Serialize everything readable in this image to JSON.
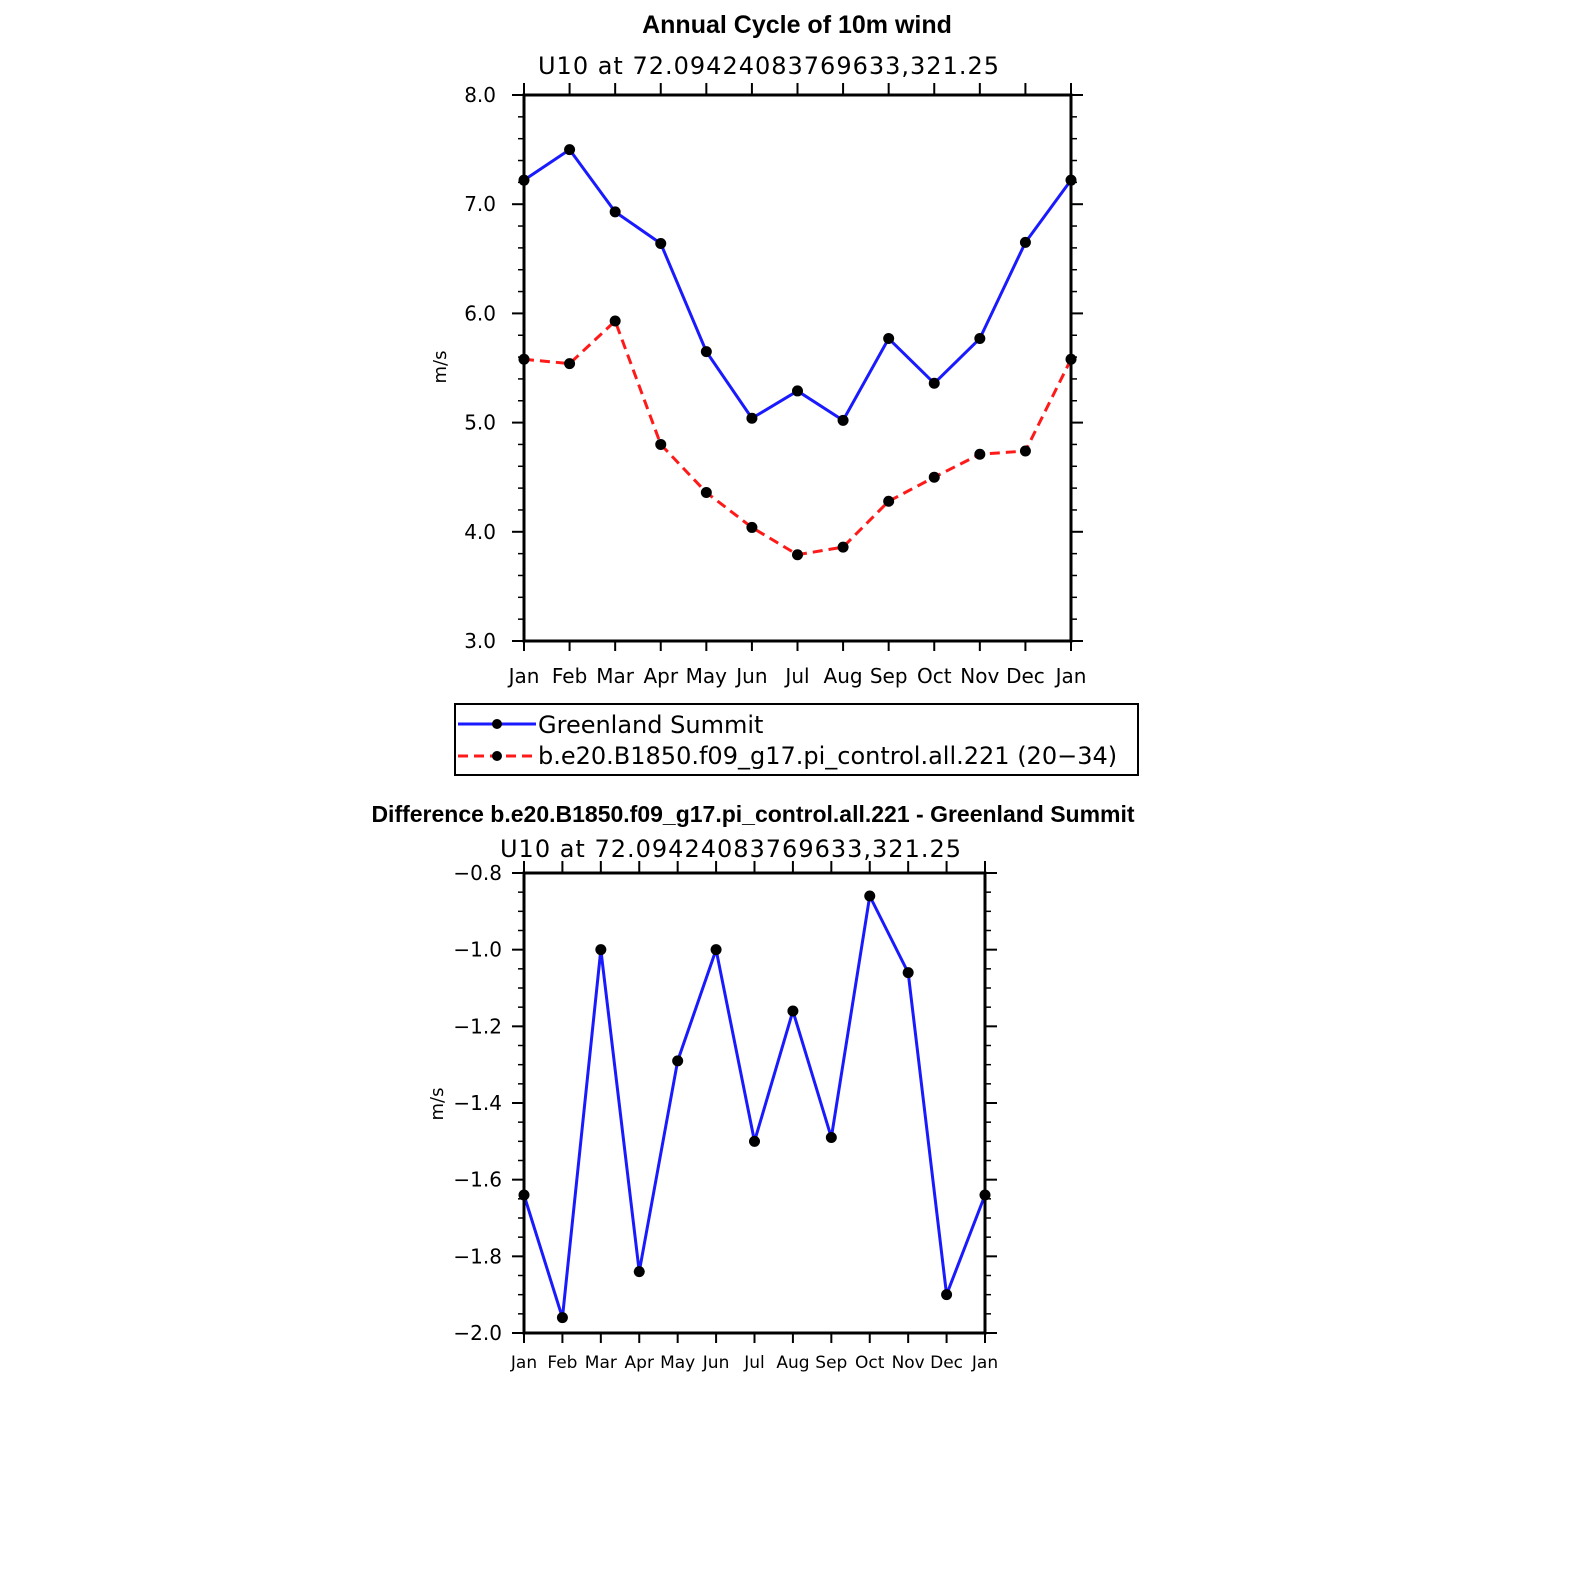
{
  "chart_data": [
    {
      "type": "line",
      "title": "Annual Cycle of 10m wind",
      "subtitle": "U10  at  72.09424083769633,321.25",
      "xlabel": "",
      "ylabel": "m/s",
      "ylim": [
        3.0,
        8.0
      ],
      "yticks": [
        "3.0",
        "4.0",
        "5.0",
        "6.0",
        "7.0",
        "8.0"
      ],
      "categories": [
        "Jan",
        "Feb",
        "Mar",
        "Apr",
        "May",
        "Jun",
        "Jul",
        "Aug",
        "Sep",
        "Oct",
        "Nov",
        "Dec",
        "Jan"
      ],
      "series": [
        {
          "name": "Greenland Summit",
          "color": "#1a1aff",
          "dash": "solid",
          "values": [
            7.22,
            7.5,
            6.93,
            6.64,
            5.65,
            5.04,
            5.29,
            5.02,
            5.77,
            5.36,
            5.77,
            6.65,
            7.22
          ]
        },
        {
          "name": "b.e20.B1850.f09_g17.pi_control.all.221 (20−34)",
          "color": "#ff1a1a",
          "dash": "dashed",
          "values": [
            5.58,
            5.54,
            5.93,
            4.8,
            4.36,
            4.04,
            3.79,
            3.86,
            4.28,
            4.5,
            4.71,
            4.74,
            5.58
          ]
        }
      ],
      "legend_position": "bottom"
    },
    {
      "type": "line",
      "title": "Difference b.e20.B1850.f09_g17.pi_control.all.221 - Greenland Summit",
      "subtitle": "U10  at  72.09424083769633,321.25",
      "xlabel": "",
      "ylabel": "m/s",
      "ylim": [
        -2.0,
        -0.8
      ],
      "yticks": [
        "−2.0",
        "−1.8",
        "−1.6",
        "−1.4",
        "−1.2",
        "−1.0",
        "−0.8"
      ],
      "categories": [
        "Jan",
        "Feb",
        "Mar",
        "Apr",
        "May",
        "Jun",
        "Jul",
        "Aug",
        "Sep",
        "Oct",
        "Nov",
        "Dec",
        "Jan"
      ],
      "series": [
        {
          "name": "Difference",
          "color": "#1a1aff",
          "dash": "solid",
          "values": [
            -1.64,
            -1.96,
            -1.0,
            -1.84,
            -1.29,
            -1.0,
            -1.5,
            -1.16,
            -1.49,
            -0.86,
            -1.06,
            -1.9,
            -1.64
          ]
        }
      ]
    }
  ]
}
